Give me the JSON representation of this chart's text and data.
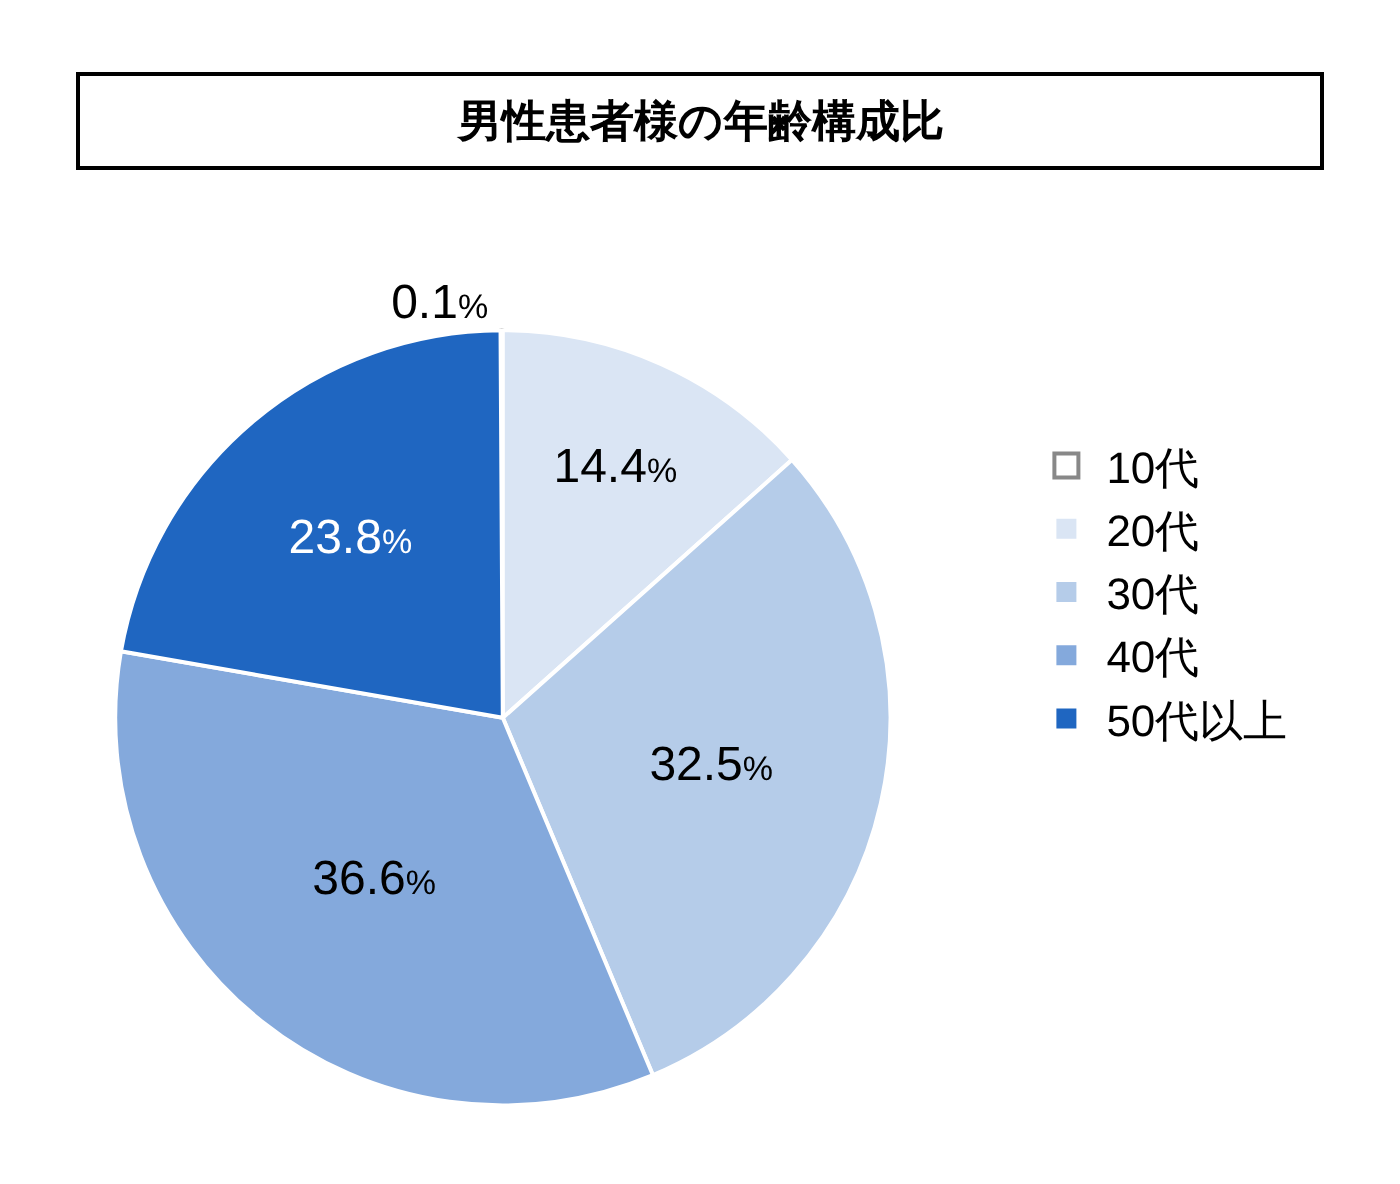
{
  "chart_data": {
    "type": "pie",
    "title": "男性患者様の年齢構成比",
    "categories": [
      "10代",
      "20代",
      "30代",
      "40代",
      "50代以上"
    ],
    "values": [
      0.1,
      14.4,
      32.5,
      36.6,
      23.8
    ],
    "colors": [
      "#ffffff",
      "#dae5f4",
      "#b5cce9",
      "#84a9dc",
      "#1f66c1"
    ],
    "value_labels": [
      "0.1%",
      "14.4%",
      "32.5%",
      "36.6%",
      "23.8%"
    ],
    "legend": "right"
  }
}
